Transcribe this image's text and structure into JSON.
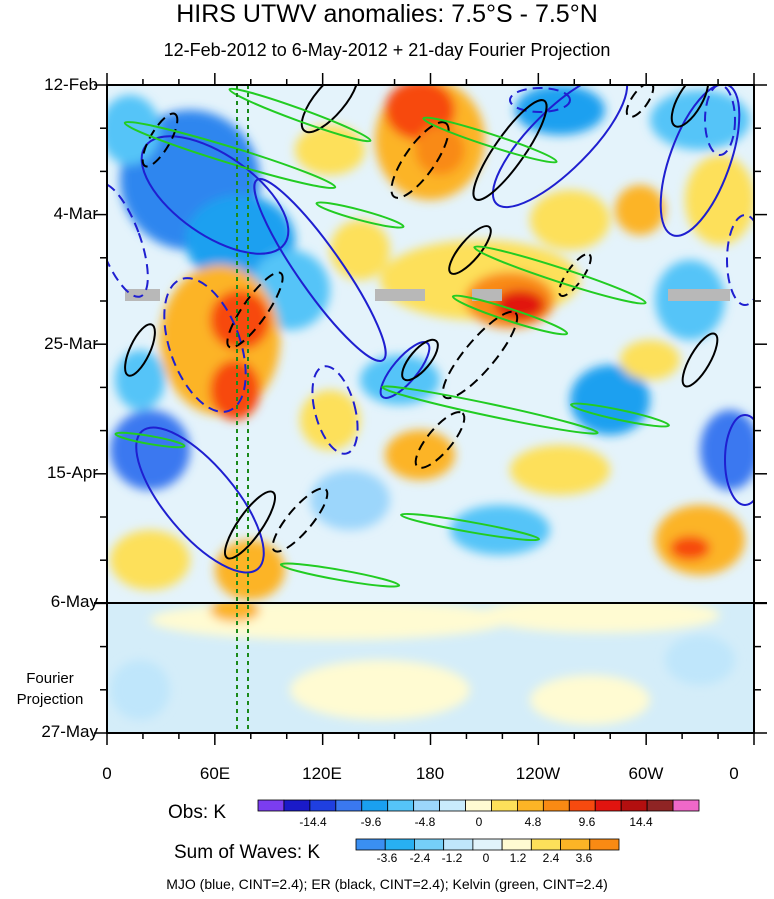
{
  "title": "HIRS UTWV anomalies: 7.5°S - 7.5°N",
  "subtitle": "12-Feb-2012 to 6-May-2012 + 21-day Fourier Projection",
  "chart_data": {
    "type": "heatmap",
    "x_axis": {
      "ticks": [
        "0",
        "60E",
        "120E",
        "180",
        "120W",
        "60W",
        "0"
      ]
    },
    "y_axis": {
      "ticks": [
        "12-Feb",
        "4-Mar",
        "25-Mar",
        "15-Apr",
        "6-May",
        "27-May"
      ]
    },
    "projection_label": [
      "Fourier",
      "Projection"
    ],
    "observed_period_end": "6-May",
    "reference_lines_longitude": [
      "72E",
      "78E"
    ],
    "colorbars": [
      {
        "title": "Obs: K",
        "tick_labels": [
          "-14.4",
          "-9.6",
          "-4.8",
          "0",
          "4.8",
          "9.6",
          "14.4"
        ],
        "colors": [
          "#7b3df0",
          "#1a1ac8",
          "#1f3fe0",
          "#3a78f0",
          "#1aa0f0",
          "#55c4f8",
          "#9cd6fb",
          "#c9ecfc",
          "#fffbd2",
          "#fde05a",
          "#fcb426",
          "#f98a13",
          "#f74a0f",
          "#e1140f",
          "#b30f0f",
          "#8f2424",
          "#f068c8"
        ]
      },
      {
        "title": "Sum of Waves: K",
        "tick_labels": [
          "-3.6",
          "-2.4",
          "-1.2",
          "0",
          "1.2",
          "2.4",
          "3.6"
        ],
        "colors": [
          "#3a8ff2",
          "#28b0f2",
          "#75cff8",
          "#bfe6fb",
          "#e1f3fb",
          "#fffbd2",
          "#fde05a",
          "#fcb426",
          "#f98a13"
        ]
      }
    ],
    "contour_legend": "MJO (blue, CINT=2.4); ER (black, CINT=2.4); Kelvin (green, CINT=2.4)",
    "contour_colors": {
      "MJO": "#1f1fd0",
      "ER": "#000000",
      "Kelvin": "#22cc22"
    }
  }
}
